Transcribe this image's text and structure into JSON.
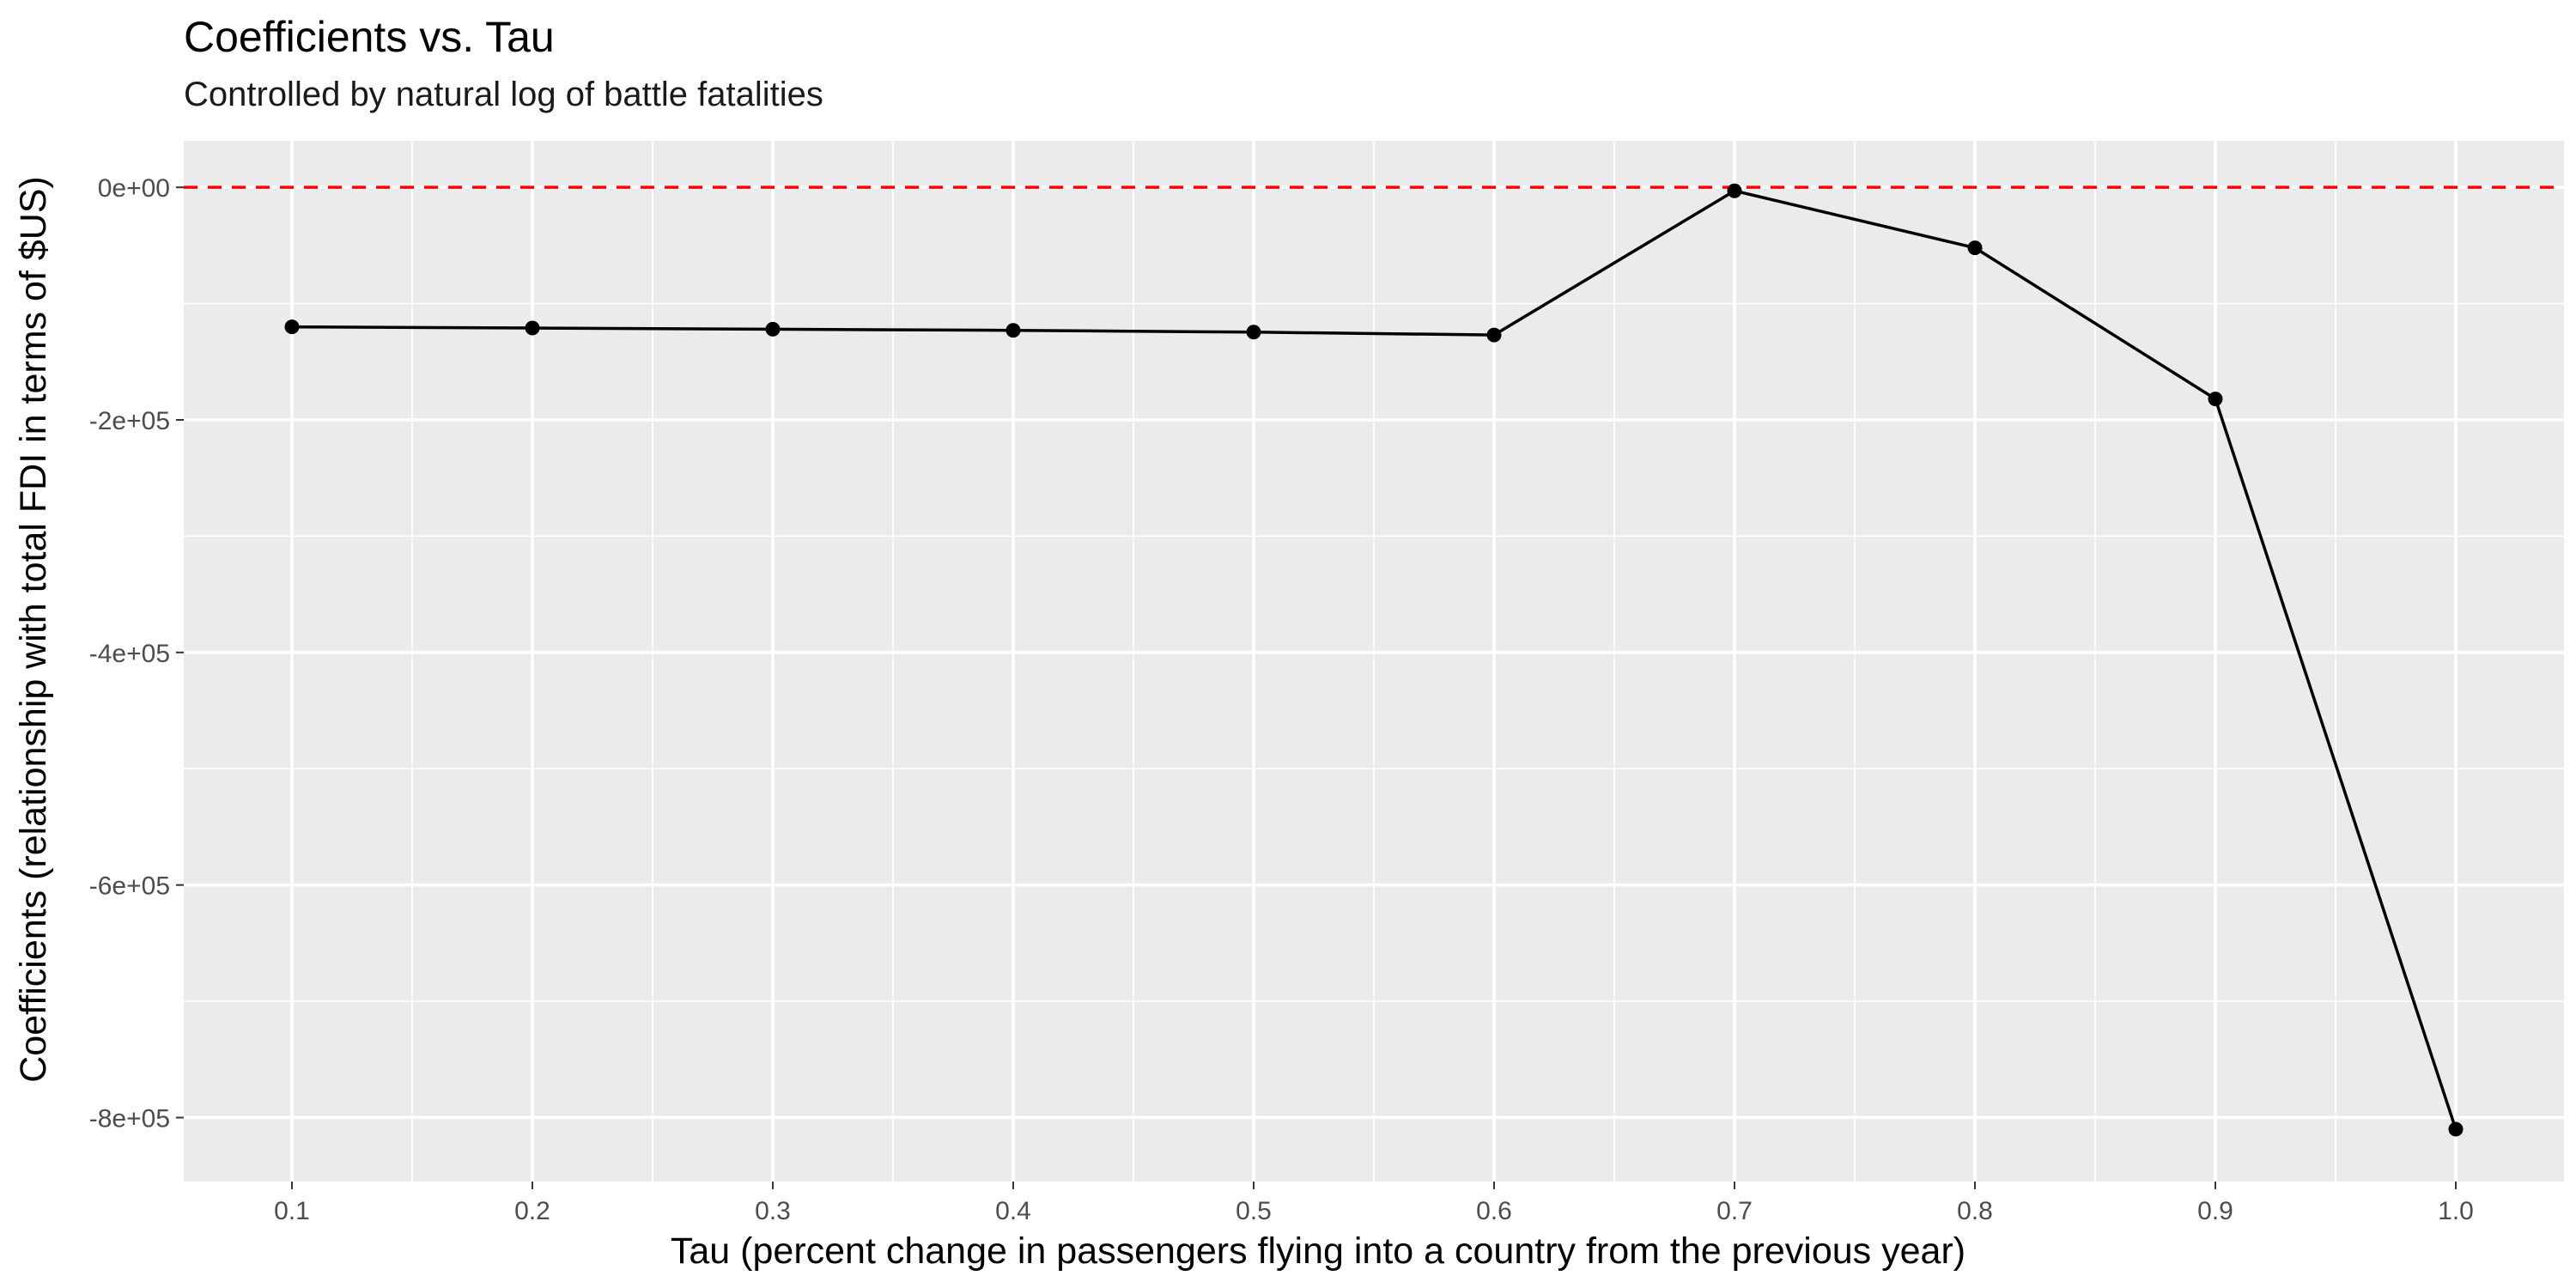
{
  "chart_data": {
    "type": "line",
    "title": "Coefficients vs. Tau",
    "subtitle": "Controlled by natural log of battle fatalities",
    "xlabel": "Tau (percent change in passengers flying into a country from the previous year)",
    "ylabel": "Coefficients (relationship with total FDI in terms of $US)",
    "x": [
      0.1,
      0.2,
      0.3,
      0.4,
      0.5,
      0.6,
      0.7,
      0.8,
      0.9,
      1.0
    ],
    "series": [
      {
        "name": "",
        "values": [
          -120000,
          -121000,
          -122000,
          -123000,
          -124500,
          -127000,
          -3000,
          -52000,
          -182000,
          -810000
        ]
      }
    ],
    "xlim": [
      0.055,
      1.045
    ],
    "ylim": [
      -855000,
      40000
    ],
    "x_ticks": [
      0.1,
      0.2,
      0.3,
      0.4,
      0.5,
      0.6,
      0.7,
      0.8,
      0.9,
      1.0
    ],
    "x_tick_labels": [
      "0.1",
      "0.2",
      "0.3",
      "0.4",
      "0.5",
      "0.6",
      "0.7",
      "0.8",
      "0.9",
      "1.0"
    ],
    "y_ticks": [
      0,
      -200000,
      -400000,
      -600000,
      -800000
    ],
    "y_tick_labels": [
      "0e+00",
      "-2e+05",
      "-4e+05",
      "-6e+05",
      "-8e+05"
    ],
    "reference_line": {
      "y": 0,
      "style": "dashed",
      "color": "#ff0000"
    },
    "grid": true,
    "legend": "none",
    "colors": {
      "panel": "#ebebeb",
      "grid": "#ffffff",
      "line": "#000000",
      "point": "#000000"
    }
  }
}
